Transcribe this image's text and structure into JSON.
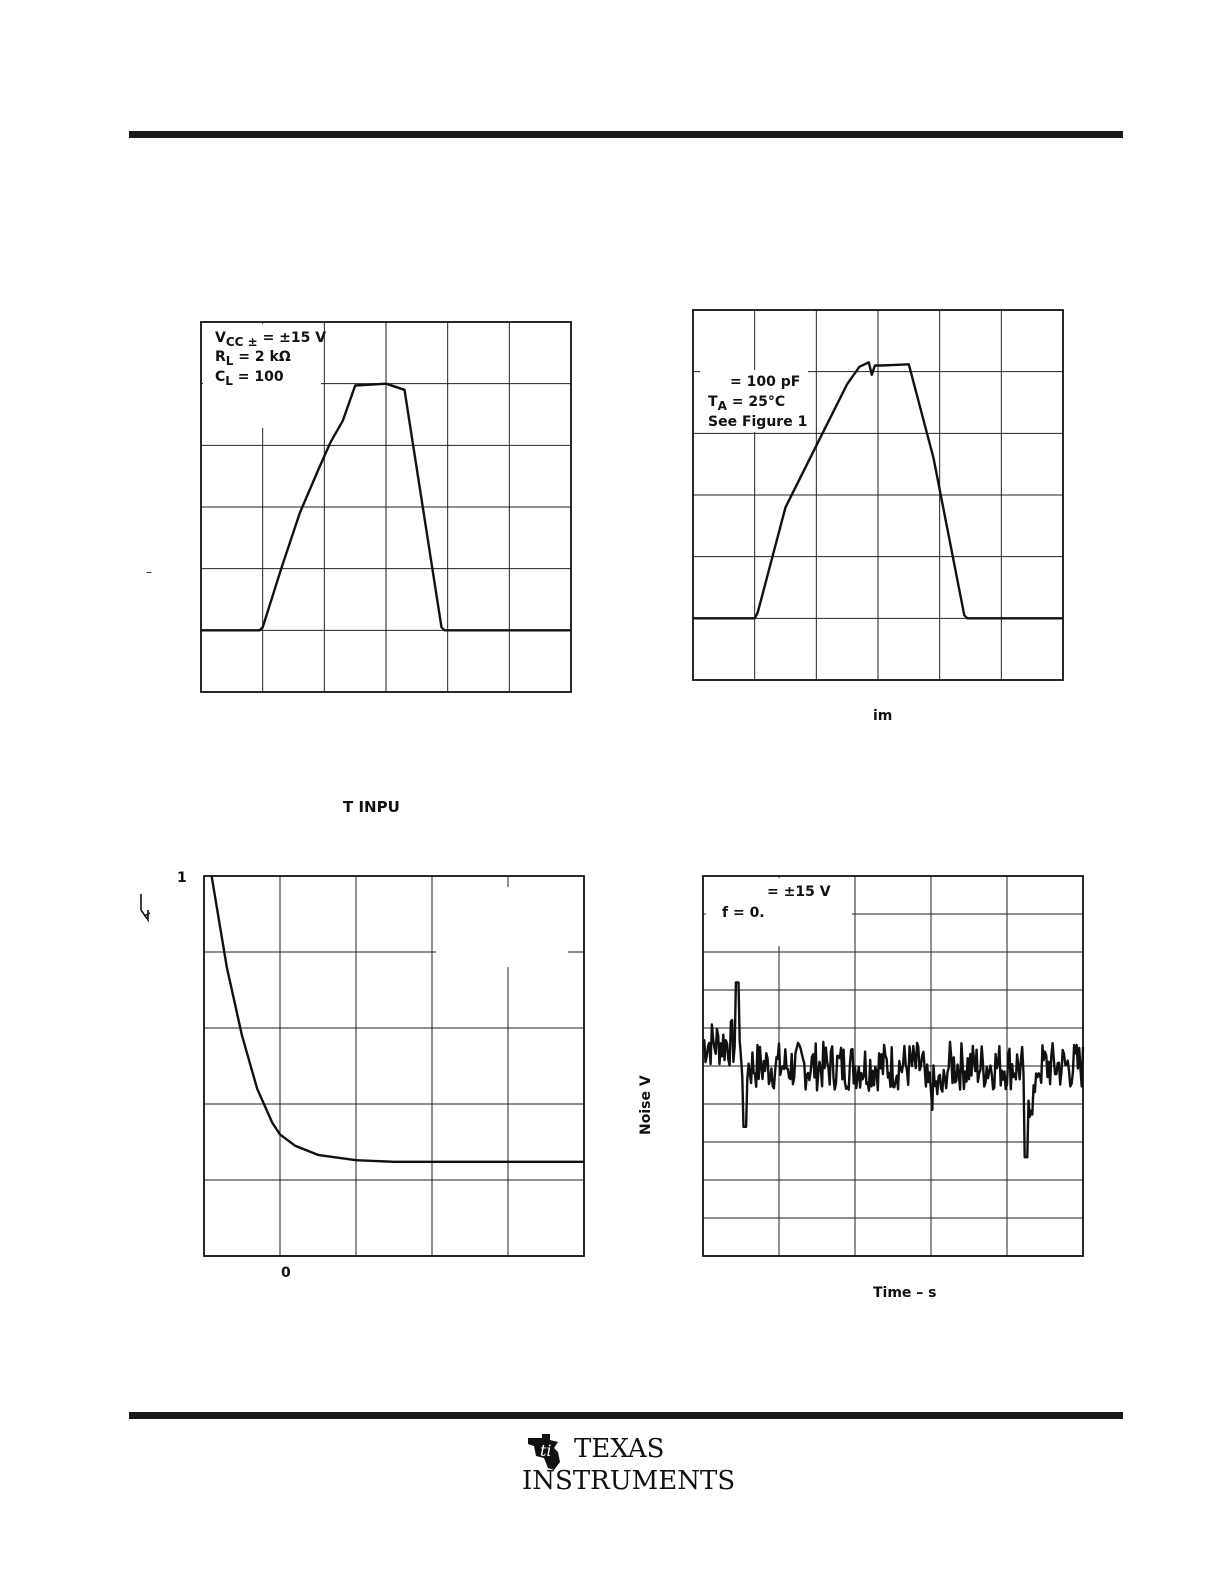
{
  "chart_data": [
    {
      "type": "line",
      "title": "",
      "xlabel": "",
      "ylabel": "",
      "grid": "6x6",
      "annotations": [
        "V",
        "CC ±",
        " = ±15 V",
        "R",
        "L",
        " = 2 kΩ",
        "C",
        "L",
        " = 100"
      ],
      "y_tick_fragment": "–",
      "series": [
        {
          "x": [
            0,
            0.95,
            1.0,
            1.3,
            1.6,
            1.9,
            2.1,
            2.3,
            2.5,
            3.0,
            3.3,
            3.9,
            3.95,
            6
          ],
          "y": [
            1.0,
            1.0,
            1.05,
            2.0,
            2.9,
            3.6,
            4.05,
            4.4,
            4.97,
            5.0,
            4.9,
            1.05,
            1.0,
            1.0
          ]
        }
      ]
    },
    {
      "type": "line",
      "title": "",
      "xlabel": "im",
      "ylabel": "",
      "grid": "6x6",
      "annotations": [
        " = 100 pF",
        "T",
        "A",
        " = 25°C",
        "See Figure 1"
      ],
      "series": [
        {
          "x": [
            0,
            1.0,
            1.05,
            1.5,
            2.0,
            2.5,
            2.7,
            2.85,
            2.9,
            2.95,
            3.05,
            3.5,
            3.9,
            4.4,
            4.45,
            6
          ],
          "y": [
            1.0,
            1.0,
            1.1,
            2.8,
            3.8,
            4.8,
            5.08,
            5.15,
            4.95,
            5.1,
            5.1,
            5.12,
            3.6,
            1.05,
            1.0,
            1.0
          ]
        }
      ]
    },
    {
      "type": "line",
      "title": "T INPU",
      "xlabel": "",
      "ylabel": "",
      "grid": "5x5",
      "y_tick_label": "1",
      "x_tick_label": "0",
      "series": [
        {
          "x": [
            0.1,
            0.3,
            0.5,
            0.7,
            0.9,
            1.0,
            1.2,
            1.5,
            2.0,
            2.5,
            3.0,
            5.0
          ],
          "y": [
            5.0,
            3.8,
            2.9,
            2.2,
            1.75,
            1.6,
            1.45,
            1.33,
            1.26,
            1.24,
            1.24,
            1.24
          ]
        }
      ]
    },
    {
      "type": "line",
      "title": "",
      "xlabel": "Time – s",
      "ylabel": "Noise V",
      "grid": "5x10",
      "annotations": [
        " = ±15 V",
        "f = 0."
      ],
      "series": [
        {
          "x": [],
          "y": []
        }
      ]
    }
  ],
  "page": {
    "fig1": {
      "vcc_v": "V",
      "vcc_sub": "CC ±",
      "vcc_val": " = ±15 V",
      "rl_r": "R",
      "rl_sub": "L",
      "rl_val": " = 2 kΩ",
      "cl_c": "C",
      "cl_sub": "L",
      "cl_val": " = 100",
      "dash": "–"
    },
    "fig2": {
      "cl": " = 100 pF",
      "ta_t": "T",
      "ta_sub": "A",
      "ta_val": " = 25°C",
      "see": "See Figure 1",
      "xlabel": "im"
    },
    "fig3": {
      "title": "T INPU",
      "ytick": "1",
      "xtick": "0"
    },
    "fig4": {
      "vcc": " = ±15 V",
      "f": "f = 0.",
      "ylabel": "Noise V",
      "xlabel": "Time – s"
    },
    "footer": {
      "brand_line1": "TEXAS",
      "brand_line2": "INSTRUMENTS"
    }
  }
}
